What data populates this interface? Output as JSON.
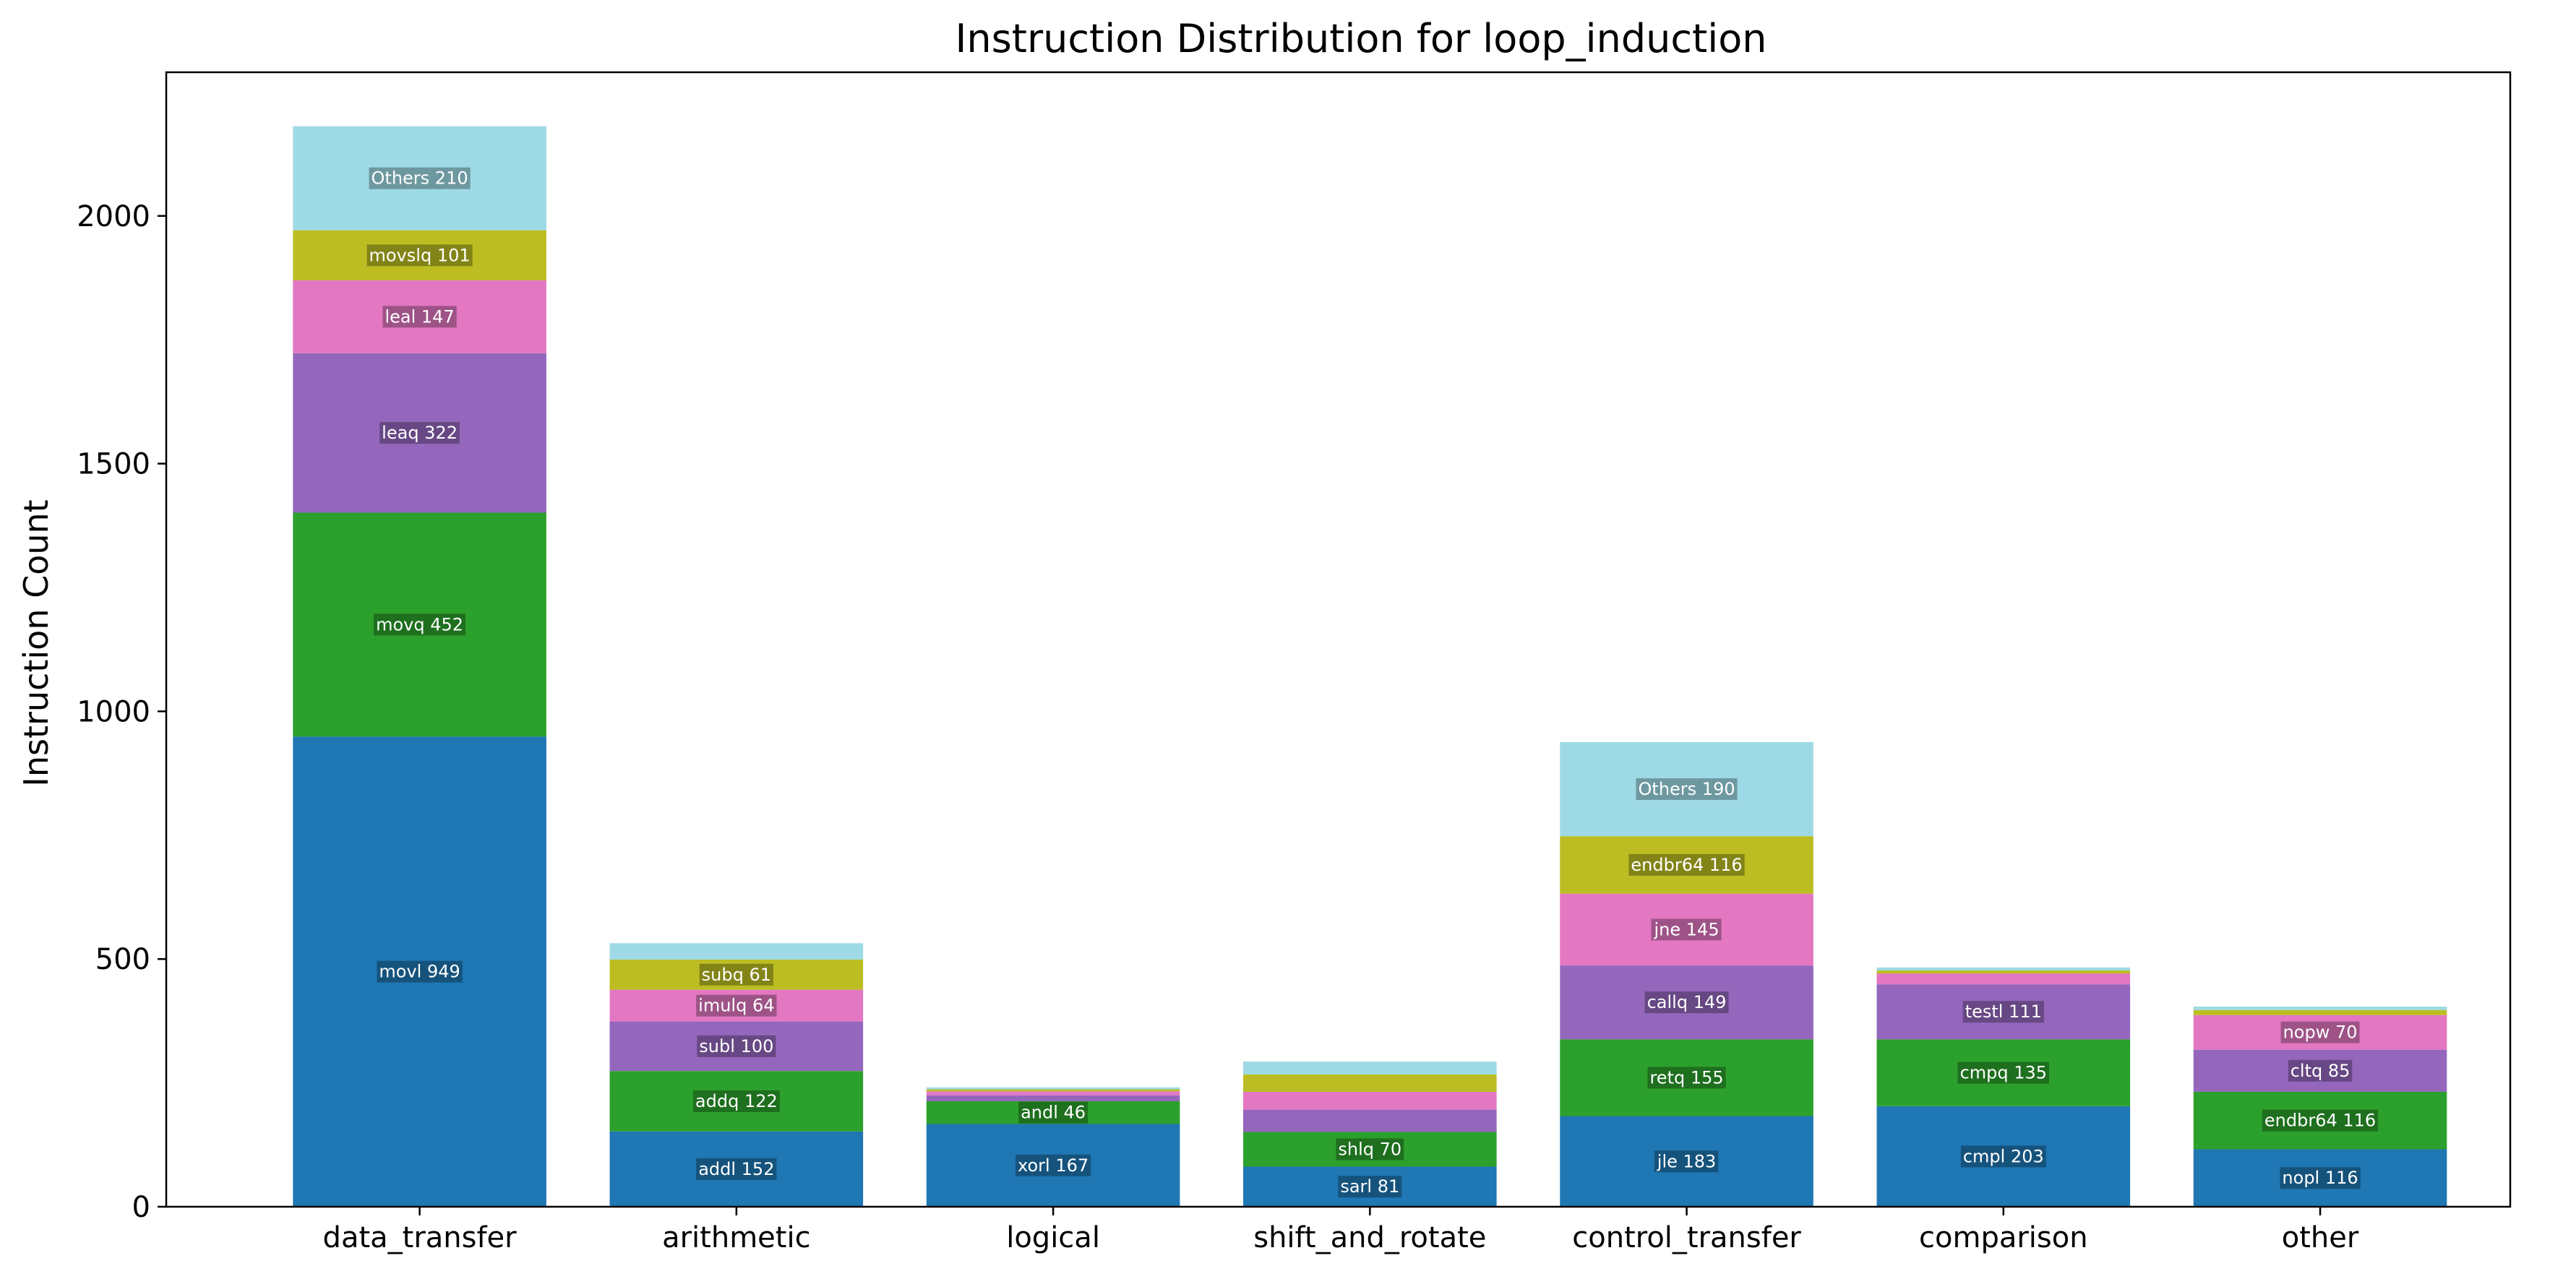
{
  "chart_data": {
    "type": "bar",
    "stacked": true,
    "title": "Instruction Distribution for loop_induction",
    "xlabel": "",
    "ylabel": "Instruction Count",
    "ylim": [
      0,
      2290
    ],
    "yticks": [
      0,
      500,
      1000,
      1500,
      2000
    ],
    "categories": [
      "data_transfer",
      "arithmetic",
      "logical",
      "shift_and_rotate",
      "control_transfer",
      "comparison",
      "other"
    ],
    "layer_colors": [
      "#1f77b4",
      "#2ca02c",
      "#9467bd",
      "#e377c2",
      "#bcbd22",
      "#9edae5"
    ],
    "stacks": [
      {
        "category": "data_transfer",
        "segments": [
          {
            "name": "movl",
            "value": 949,
            "label": "movl 949"
          },
          {
            "name": "movq",
            "value": 452,
            "label": "movq 452"
          },
          {
            "name": "leaq",
            "value": 322,
            "label": "leaq 322"
          },
          {
            "name": "leal",
            "value": 147,
            "label": "leal 147"
          },
          {
            "name": "movslq",
            "value": 101,
            "label": "movslq 101"
          },
          {
            "name": "Others",
            "value": 210,
            "label": "Others 210"
          }
        ]
      },
      {
        "category": "arithmetic",
        "segments": [
          {
            "name": "addl",
            "value": 152,
            "label": "addl 152"
          },
          {
            "name": "addq",
            "value": 122,
            "label": "addq 122"
          },
          {
            "name": "subl",
            "value": 100,
            "label": "subl 100"
          },
          {
            "name": "imulq",
            "value": 64,
            "label": "imulq 64"
          },
          {
            "name": "subq",
            "value": 61,
            "label": "subq 61"
          },
          {
            "name": "Others",
            "value": 33,
            "label": null
          }
        ]
      },
      {
        "category": "logical",
        "segments": [
          {
            "name": "xorl",
            "value": 167,
            "label": "xorl 167"
          },
          {
            "name": "andl",
            "value": 46,
            "label": "andl 46"
          },
          {
            "name": "seg3",
            "value": 12,
            "label": null
          },
          {
            "name": "seg4",
            "value": 8,
            "label": null
          },
          {
            "name": "seg5",
            "value": 4,
            "label": null
          },
          {
            "name": "Others",
            "value": 4,
            "label": null
          }
        ]
      },
      {
        "category": "shift_and_rotate",
        "segments": [
          {
            "name": "sarl",
            "value": 81,
            "label": "sarl 81"
          },
          {
            "name": "shlq",
            "value": 70,
            "label": "shlq 70"
          },
          {
            "name": "seg3",
            "value": 45,
            "label": null
          },
          {
            "name": "seg4",
            "value": 36,
            "label": null
          },
          {
            "name": "seg5",
            "value": 35,
            "label": null
          },
          {
            "name": "Others",
            "value": 26,
            "label": null
          }
        ]
      },
      {
        "category": "control_transfer",
        "segments": [
          {
            "name": "jle",
            "value": 183,
            "label": "jle 183"
          },
          {
            "name": "retq",
            "value": 155,
            "label": "retq 155"
          },
          {
            "name": "callq",
            "value": 149,
            "label": "callq 149"
          },
          {
            "name": "jne",
            "value": 145,
            "label": "jne 145"
          },
          {
            "name": "endbr64",
            "value": 116,
            "label": "endbr64 116"
          },
          {
            "name": "Others",
            "value": 190,
            "label": "Others 190"
          }
        ]
      },
      {
        "category": "comparison",
        "segments": [
          {
            "name": "cmpl",
            "value": 203,
            "label": "cmpl 203"
          },
          {
            "name": "cmpq",
            "value": 135,
            "label": "cmpq 135"
          },
          {
            "name": "testl",
            "value": 111,
            "label": "testl 111"
          },
          {
            "name": "seg4",
            "value": 22,
            "label": null
          },
          {
            "name": "seg5",
            "value": 6,
            "label": null
          },
          {
            "name": "Others",
            "value": 6,
            "label": null
          }
        ]
      },
      {
        "category": "other",
        "segments": [
          {
            "name": "nopl",
            "value": 116,
            "label": "nopl 116"
          },
          {
            "name": "endbr64",
            "value": 116,
            "label": "endbr64 116"
          },
          {
            "name": "cltq",
            "value": 85,
            "label": "cltq 85"
          },
          {
            "name": "nopw",
            "value": 70,
            "label": "nopw 70"
          },
          {
            "name": "seg5",
            "value": 10,
            "label": null
          },
          {
            "name": "Others",
            "value": 7,
            "label": null
          }
        ]
      }
    ]
  }
}
